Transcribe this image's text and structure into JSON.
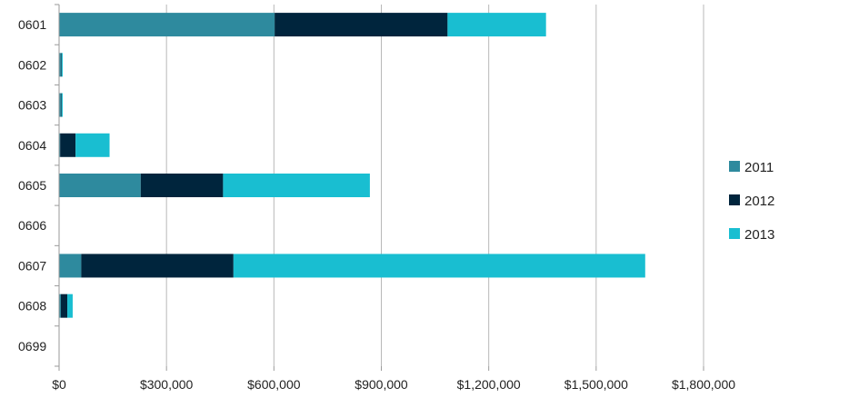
{
  "chart_data": {
    "type": "bar",
    "orientation": "horizontal",
    "stacked": true,
    "categories": [
      "0601",
      "0602",
      "0603",
      "0604",
      "0605",
      "0606",
      "0607",
      "0608",
      "0699"
    ],
    "series": [
      {
        "name": "2011",
        "color": "#2e8a9e",
        "values": [
          602000,
          5000,
          5000,
          3000,
          228000,
          0,
          62000,
          5000,
          0
        ]
      },
      {
        "name": "2012",
        "color": "#00253d",
        "values": [
          483000,
          2000,
          2000,
          43000,
          230000,
          0,
          425000,
          18000,
          0
        ]
      },
      {
        "name": "2013",
        "color": "#19bed1",
        "values": [
          275000,
          3000,
          3000,
          95000,
          410000,
          0,
          1150000,
          15000,
          0
        ]
      }
    ],
    "xlim": [
      0,
      1800000
    ],
    "xticks": [
      0,
      300000,
      600000,
      900000,
      1200000,
      1500000,
      1800000
    ],
    "xtick_labels": [
      "$0",
      "$300,000",
      "$600,000",
      "$900,000",
      "$1,200,000",
      "$1,500,000",
      "$1,800,000"
    ],
    "grid": "vertical",
    "legend_position": "right",
    "title": "",
    "xlabel": "",
    "ylabel": ""
  }
}
